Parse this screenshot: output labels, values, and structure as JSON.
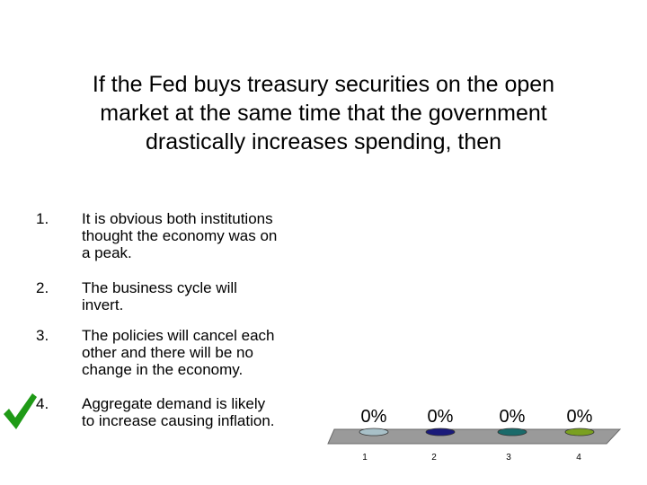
{
  "question": {
    "lines": [
      "If the Fed buys treasury securities on the open",
      "market at the same time that the government",
      "drastically increases spending, then"
    ]
  },
  "answers": [
    {
      "number": "1.",
      "lines": [
        "It is obvious both institutions",
        "thought the economy was on",
        "a peak."
      ]
    },
    {
      "number": "2.",
      "lines": [
        "The business cycle will",
        "invert."
      ]
    },
    {
      "number": "3.",
      "lines": [
        "The policies will cancel each",
        "other and there will be no",
        "change in the economy."
      ]
    },
    {
      "number": "4.",
      "lines": [
        "Aggregate demand is likely",
        "to increase causing inflation."
      ]
    }
  ],
  "correct_answer_icon": "checkmark-icon",
  "colors": {
    "checkmark": "#1f9a16",
    "chart_floor": "#9a9a9a",
    "chart_floor_edge": "#6a6a6a"
  },
  "chart_data": {
    "type": "bar",
    "categories": [
      "1",
      "2",
      "3",
      "4"
    ],
    "values": [
      0,
      0,
      0,
      0
    ],
    "value_labels": [
      "0%",
      "0%",
      "0%",
      "0%"
    ],
    "colors": [
      "#a8c0c8",
      "#1a1a7a",
      "#1a6a6a",
      "#7aa020"
    ],
    "ylim": [
      0,
      100
    ]
  }
}
